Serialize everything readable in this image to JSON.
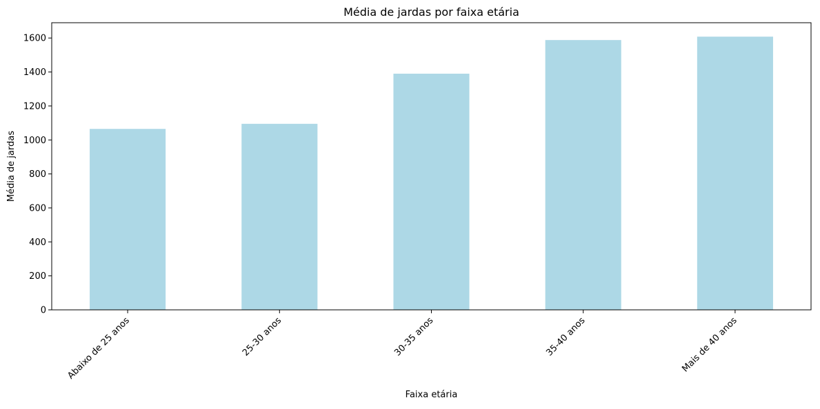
{
  "chart_data": {
    "type": "bar",
    "title": "Média de jardas por faixa etária",
    "xlabel": "Faixa etária",
    "ylabel": "Média de jardas",
    "categories": [
      "Abaixo de 25 anos",
      "25-30 anos",
      "30-35 anos",
      "35-40 anos",
      "Mais de 40 anos"
    ],
    "values": [
      1065,
      1095,
      1390,
      1588,
      1608
    ],
    "ylim": [
      0,
      1690
    ],
    "yticks": [
      0,
      200,
      400,
      600,
      800,
      1000,
      1200,
      1400,
      1600
    ],
    "bar_color": "#add8e6",
    "grid": false,
    "legend": "none"
  }
}
